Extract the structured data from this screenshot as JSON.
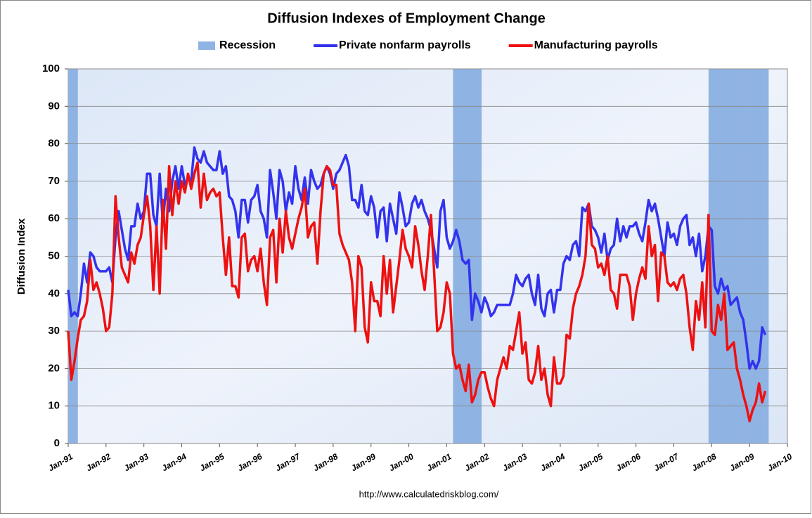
{
  "chart_data": {
    "type": "line",
    "title": "Diffusion Indexes of Employment Change",
    "y_label": "Diffusion Index",
    "source": "http://www.calculatedriskblog.com/",
    "categories": [
      "Jan-91",
      null,
      null,
      null,
      null,
      null,
      null,
      null,
      null,
      null,
      null,
      null,
      "Jan-92",
      null,
      null,
      null,
      null,
      null,
      null,
      null,
      null,
      null,
      null,
      null,
      "Jan-93",
      null,
      null,
      null,
      null,
      null,
      null,
      null,
      null,
      null,
      null,
      null,
      "Jan-94",
      null,
      null,
      null,
      null,
      null,
      null,
      null,
      null,
      null,
      null,
      null,
      "Jan-95",
      null,
      null,
      null,
      null,
      null,
      null,
      null,
      null,
      null,
      null,
      null,
      "Jan-96",
      null,
      null,
      null,
      null,
      null,
      null,
      null,
      null,
      null,
      null,
      null,
      "Jan-97",
      null,
      null,
      null,
      null,
      null,
      null,
      null,
      null,
      null,
      null,
      null,
      "Jan-98",
      null,
      null,
      null,
      null,
      null,
      null,
      null,
      null,
      null,
      null,
      null,
      "Jan-99",
      null,
      null,
      null,
      null,
      null,
      null,
      null,
      null,
      null,
      null,
      null,
      "Jan-00",
      null,
      null,
      null,
      null,
      null,
      null,
      null,
      null,
      null,
      null,
      null,
      "Jan-01",
      null,
      null,
      null,
      null,
      null,
      null,
      null,
      null,
      null,
      null,
      null,
      "Jan-02",
      null,
      null,
      null,
      null,
      null,
      null,
      null,
      null,
      null,
      null,
      null,
      "Jan-03",
      null,
      null,
      null,
      null,
      null,
      null,
      null,
      null,
      null,
      null,
      null,
      "Jan-04",
      null,
      null,
      null,
      null,
      null,
      null,
      null,
      null,
      null,
      null,
      null,
      "Jan-05",
      null,
      null,
      null,
      null,
      null,
      null,
      null,
      null,
      null,
      null,
      null,
      "Jan-06",
      null,
      null,
      null,
      null,
      null,
      null,
      null,
      null,
      null,
      null,
      null,
      "Jan-07",
      null,
      null,
      null,
      null,
      null,
      null,
      null,
      null,
      null,
      null,
      null,
      "Jan-08",
      null,
      null,
      null,
      null,
      null,
      null,
      null,
      null,
      null,
      null,
      null,
      "Jan-09",
      null,
      null,
      null,
      null,
      null,
      null,
      null,
      null,
      null,
      null,
      null,
      "Jan-10"
    ],
    "series": [
      {
        "name": "Recession",
        "kind": "bar",
        "color": "#8fb3e3",
        "values": [
          100,
          100,
          100,
          null,
          null,
          null,
          null,
          null,
          null,
          null,
          null,
          null,
          null,
          null,
          null,
          null,
          null,
          null,
          null,
          null,
          null,
          null,
          null,
          null,
          null,
          null,
          null,
          null,
          null,
          null,
          null,
          null,
          null,
          null,
          null,
          null,
          null,
          null,
          null,
          null,
          null,
          null,
          null,
          null,
          null,
          null,
          null,
          null,
          null,
          null,
          null,
          null,
          null,
          null,
          null,
          null,
          null,
          null,
          null,
          null,
          null,
          null,
          null,
          null,
          null,
          null,
          null,
          null,
          null,
          null,
          null,
          null,
          null,
          null,
          null,
          null,
          null,
          null,
          null,
          null,
          null,
          null,
          null,
          null,
          null,
          null,
          null,
          null,
          null,
          null,
          null,
          null,
          null,
          null,
          null,
          null,
          null,
          null,
          null,
          null,
          null,
          null,
          null,
          null,
          null,
          null,
          null,
          null,
          null,
          null,
          null,
          null,
          null,
          null,
          null,
          null,
          null,
          null,
          null,
          null,
          null,
          null,
          100,
          100,
          100,
          100,
          100,
          100,
          100,
          100,
          100,
          null,
          null,
          null,
          null,
          null,
          null,
          null,
          null,
          null,
          null,
          null,
          null,
          null,
          null,
          null,
          null,
          null,
          null,
          null,
          null,
          null,
          null,
          null,
          null,
          null,
          null,
          null,
          null,
          null,
          null,
          null,
          null,
          null,
          null,
          null,
          null,
          null,
          null,
          null,
          null,
          null,
          null,
          null,
          null,
          null,
          null,
          null,
          null,
          null,
          null,
          null,
          null,
          null,
          null,
          null,
          null,
          null,
          null,
          null,
          null,
          null,
          null,
          null,
          null,
          null,
          null,
          null,
          null,
          null,
          null,
          null,
          null,
          100,
          100,
          100,
          100,
          100,
          100,
          100,
          100,
          100,
          100,
          100,
          100,
          100,
          100,
          100,
          100,
          100,
          100,
          100,
          null,
          null,
          null,
          null,
          null,
          null,
          null
        ]
      },
      {
        "name": "Private nonfarm payrolls",
        "kind": "line",
        "color": "#3333ee",
        "values": [
          41,
          34,
          35,
          34,
          40,
          48,
          43,
          51,
          50,
          47,
          46,
          46,
          46,
          47,
          43,
          55,
          62,
          57,
          52,
          49,
          58,
          58,
          64,
          60,
          62,
          72,
          72,
          61,
          58,
          72,
          59,
          68,
          62,
          70,
          74,
          68,
          74,
          69,
          71,
          70,
          79,
          76,
          75,
          78,
          75,
          74,
          73,
          73,
          78,
          72,
          74,
          66,
          65,
          62,
          55,
          65,
          65,
          59,
          65,
          66,
          69,
          62,
          60,
          55,
          73,
          67,
          60,
          73,
          70,
          62,
          67,
          64,
          74,
          68,
          65,
          71,
          64,
          73,
          70,
          68,
          69,
          72,
          74,
          72,
          68,
          72,
          73,
          75,
          77,
          74,
          65,
          65,
          63,
          69,
          62,
          61,
          66,
          63,
          55,
          62,
          63,
          54,
          64,
          60,
          56,
          67,
          63,
          58,
          59,
          64,
          66,
          63,
          65,
          62,
          60,
          57,
          52,
          47,
          62,
          65,
          55,
          52,
          54,
          57,
          54,
          49,
          48,
          49,
          33,
          40,
          38,
          35,
          39,
          37,
          34,
          35,
          37,
          37,
          37,
          37,
          37,
          40,
          45,
          43,
          42,
          44,
          45,
          40,
          37,
          45,
          36,
          34,
          40,
          41,
          35,
          41,
          41,
          48,
          50,
          49,
          53,
          54,
          50,
          63,
          62,
          64,
          58,
          57,
          55,
          51,
          56,
          49,
          52,
          53,
          60,
          54,
          58,
          55,
          58,
          58,
          59,
          56,
          54,
          59,
          65,
          62,
          64,
          60,
          55,
          50,
          59,
          55,
          56,
          53,
          58,
          60,
          61,
          53,
          55,
          50,
          56,
          46,
          50,
          58,
          57,
          42,
          40,
          44,
          41,
          42,
          37,
          38,
          39,
          35,
          33,
          27,
          20,
          22,
          20,
          22,
          31,
          29,
          null,
          null,
          null,
          null,
          null,
          null,
          null
        ]
      },
      {
        "name": "Manufacturing payrolls",
        "kind": "line",
        "color": "#ee1111",
        "values": [
          30,
          17,
          22,
          28,
          33,
          34,
          38,
          49,
          41,
          43,
          40,
          36,
          30,
          31,
          40,
          66,
          55,
          47,
          45,
          43,
          51,
          48,
          53,
          55,
          61,
          66,
          58,
          41,
          58,
          40,
          65,
          52,
          74,
          61,
          70,
          64,
          70,
          67,
          72,
          68,
          72,
          75,
          63,
          72,
          65,
          67,
          68,
          66,
          67,
          55,
          45,
          55,
          42,
          42,
          39,
          55,
          56,
          46,
          49,
          50,
          46,
          52,
          43,
          37,
          55,
          57,
          43,
          60,
          51,
          62,
          55,
          52,
          56,
          60,
          63,
          68,
          55,
          58,
          59,
          48,
          62,
          72,
          74,
          73,
          69,
          69,
          56,
          53,
          51,
          49,
          43,
          30,
          50,
          47,
          31,
          27,
          43,
          38,
          38,
          34,
          50,
          40,
          49,
          35,
          42,
          49,
          57,
          52,
          50,
          47,
          58,
          53,
          46,
          41,
          50,
          61,
          46,
          30,
          31,
          35,
          43,
          40,
          24,
          20,
          21,
          17,
          14,
          21,
          11,
          13,
          17,
          19,
          19,
          15,
          12,
          10,
          17,
          20,
          23,
          20,
          26,
          25,
          30,
          35,
          24,
          27,
          17,
          16,
          19,
          26,
          17,
          20,
          13,
          10,
          23,
          16,
          16,
          18,
          29,
          28,
          36,
          40,
          42,
          45,
          50,
          64,
          53,
          52,
          47,
          48,
          45,
          50,
          41,
          40,
          36,
          45,
          45,
          45,
          42,
          33,
          40,
          44,
          47,
          44,
          58,
          50,
          53,
          38,
          51,
          50,
          43,
          42,
          43,
          41,
          44,
          45,
          40,
          31,
          25,
          38,
          33,
          43,
          31,
          61,
          30,
          29,
          37,
          33,
          40,
          25,
          26,
          27,
          20,
          17,
          13,
          10,
          6,
          9,
          11,
          16,
          11,
          14,
          null,
          null,
          null,
          null,
          null,
          null,
          null
        ]
      }
    ],
    "ylim": [
      0,
      100
    ],
    "yticks": [
      0,
      10,
      20,
      30,
      40,
      50,
      60,
      70,
      80,
      90,
      100
    ],
    "grid": true,
    "legend": "top"
  }
}
